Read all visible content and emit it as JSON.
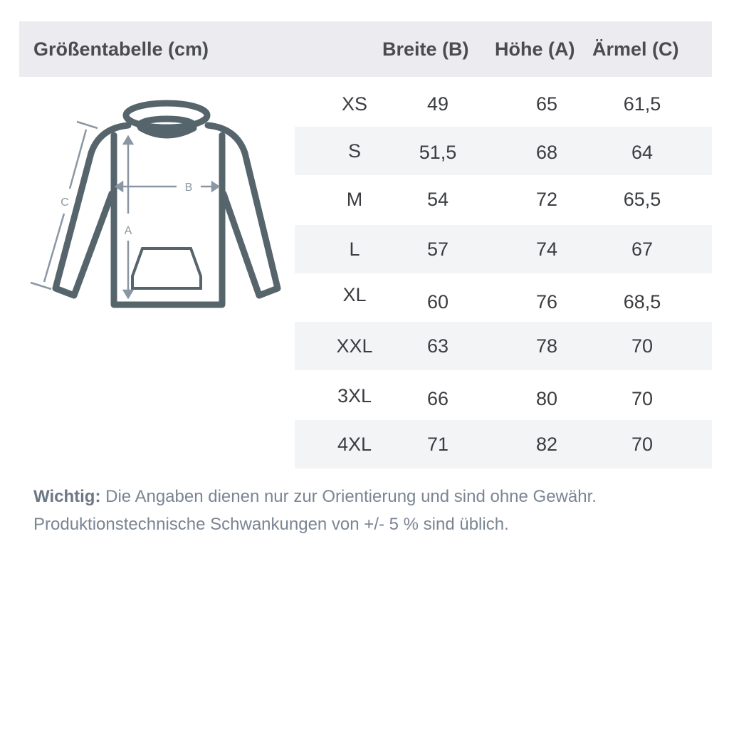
{
  "header": {
    "title": "Größentabelle (cm)",
    "col_b": "Breite (B)",
    "col_a": "Höhe (A)",
    "col_c": "Ärmel (C)"
  },
  "diagram": {
    "label_a": "A",
    "label_b": "B",
    "label_c": "C",
    "garment_color": "#56646c",
    "arrow_color": "#8a97a3"
  },
  "rows": [
    {
      "size": "XS",
      "b": "49",
      "a": "65",
      "c": "61,5"
    },
    {
      "size": "S",
      "b": "51,5",
      "a": "68",
      "c": "64"
    },
    {
      "size": "M",
      "b": "54",
      "a": "72",
      "c": "65,5"
    },
    {
      "size": "L",
      "b": "57",
      "a": "74",
      "c": "67"
    },
    {
      "size": "XL",
      "b": "60",
      "a": "76",
      "c": "68,5"
    },
    {
      "size": "XXL",
      "b": "63",
      "a": "78",
      "c": "70"
    },
    {
      "size": "3XL",
      "b": "66",
      "a": "80",
      "c": "70"
    },
    {
      "size": "4XL",
      "b": "71",
      "a": "82",
      "c": "70"
    }
  ],
  "note": {
    "bold": "Wichtig:",
    "line1": " Die Angaben dienen nur zur Orientierung und sind ohne Gewähr.",
    "line2": "Produktionstechnische Schwankungen von +/- 5 % sind üblich."
  }
}
